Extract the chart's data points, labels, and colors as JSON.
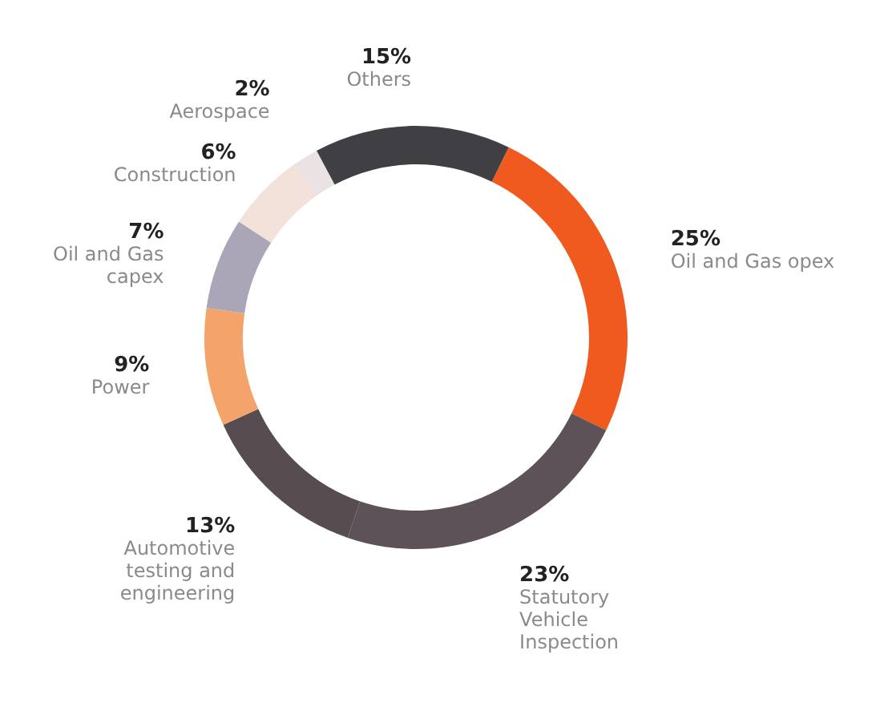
{
  "chart_data": {
    "type": "donut",
    "categories": [
      "Oil and Gas opex",
      "Statutory Vehicle Inspection",
      "Automotive testing and engineering",
      "Power",
      "Oil and Gas capex",
      "Construction",
      "Aerospace",
      "Others"
    ],
    "values": [
      25,
      23,
      13,
      9,
      7,
      6,
      2,
      15
    ],
    "colors": [
      "#f05a1e",
      "#5c5257",
      "#574d51",
      "#f4a46a",
      "#aba5b8",
      "#f3e2da",
      "#ebe3e3",
      "#3f3f44"
    ],
    "value_labels": [
      "25%",
      "23%",
      "13%",
      "9%",
      "7%",
      "6%",
      "2%",
      "15%"
    ],
    "legend": false
  }
}
